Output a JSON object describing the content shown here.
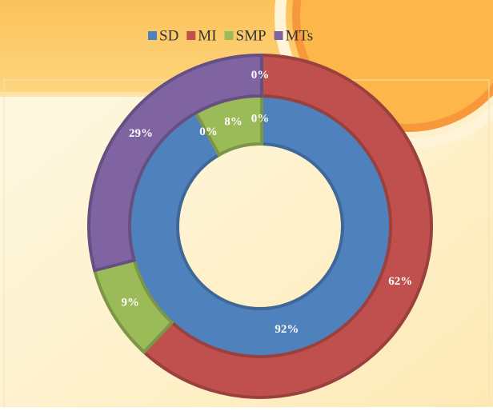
{
  "chart_data": {
    "type": "donut",
    "categories": [
      "SD",
      "MI",
      "SMP",
      "MTs"
    ],
    "colors": [
      "#4f81bd",
      "#c0504d",
      "#9bbb59",
      "#8064a2"
    ],
    "rings": [
      {
        "values": [
          92,
          0,
          8,
          0
        ],
        "value_labels": [
          "92%",
          "0%",
          "8%",
          "0%"
        ]
      },
      {
        "values": [
          0,
          62,
          9,
          29
        ],
        "value_labels": [
          "0%",
          "62%",
          "9%",
          "29%"
        ]
      }
    ],
    "legend": "top"
  }
}
